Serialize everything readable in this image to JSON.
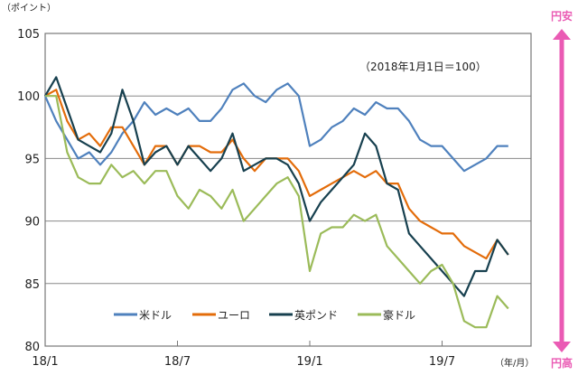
{
  "chart_data": {
    "type": "line",
    "ylabel": "（ポイント）",
    "xlabel": "（年/月）",
    "annotation": "（2018年1月1日＝100）",
    "ylim": [
      80,
      105
    ],
    "yticks": [
      "80",
      "85",
      "90",
      "95",
      "100",
      "105"
    ],
    "xlim": [
      "2018/01/01",
      "2019/10/31"
    ],
    "xticks": [
      {
        "label": "18/1",
        "date": "2018/01/01"
      },
      {
        "label": "18/7",
        "date": "2018/07/01"
      },
      {
        "label": "19/1",
        "date": "2019/01/01"
      },
      {
        "label": "19/7",
        "date": "2019/07/01"
      }
    ],
    "grid": "horizontal",
    "legend_position": "bottom-left",
    "side_arrow": {
      "top_label": "円安",
      "bottom_label": "円高",
      "color": "#ea5bb4"
    },
    "x": [
      "2018/01/01",
      "2018/01/16",
      "2018/02/01",
      "2018/02/16",
      "2018/03/01",
      "2018/03/16",
      "2018/04/01",
      "2018/04/16",
      "2018/05/01",
      "2018/05/16",
      "2018/06/01",
      "2018/06/16",
      "2018/07/01",
      "2018/07/16",
      "2018/08/01",
      "2018/08/16",
      "2018/09/01",
      "2018/09/16",
      "2018/10/01",
      "2018/10/16",
      "2018/11/01",
      "2018/11/16",
      "2018/12/01",
      "2018/12/16",
      "2019/01/01",
      "2019/01/16",
      "2019/02/01",
      "2019/02/16",
      "2019/03/01",
      "2019/03/16",
      "2019/04/01",
      "2019/04/16",
      "2019/05/01",
      "2019/05/16",
      "2019/06/01",
      "2019/06/16",
      "2019/07/01",
      "2019/07/16",
      "2019/08/01",
      "2019/08/16",
      "2019/09/01",
      "2019/09/16",
      "2019/10/01"
    ],
    "series": [
      {
        "name": "米ドル",
        "color": "#4f81bd",
        "values": [
          100,
          98,
          96.5,
          95,
          95.5,
          94.5,
          95.5,
          97,
          98,
          99.5,
          98.5,
          99,
          98.5,
          99,
          98,
          98,
          99,
          100.5,
          101,
          100,
          99.5,
          100.5,
          101,
          100,
          96,
          96.5,
          97.5,
          98,
          99,
          98.5,
          99.5,
          99,
          99,
          98,
          96.5,
          96,
          96,
          95,
          94,
          94.5,
          95,
          96,
          96
        ]
      },
      {
        "name": "ユーロ",
        "color": "#e36c0a",
        "values": [
          100,
          100.5,
          98,
          96.5,
          97,
          96,
          97.5,
          97.5,
          96,
          94.5,
          96,
          96,
          94.5,
          96,
          96,
          95.5,
          95.5,
          96.5,
          95,
          94,
          95,
          95,
          95,
          94,
          92,
          92.5,
          93,
          93.5,
          94,
          93.5,
          94,
          93,
          93,
          91,
          90,
          89.5,
          89,
          89,
          88,
          87.5,
          87,
          88.5,
          87.3
        ]
      },
      {
        "name": "英ポンド",
        "color": "#17404f",
        "values": [
          100,
          101.5,
          99,
          96.5,
          96,
          95.5,
          97,
          100.5,
          98,
          94.5,
          95.5,
          96,
          94.5,
          96,
          95,
          94,
          95,
          97,
          94,
          94.5,
          95,
          95,
          94.5,
          93,
          90,
          91.5,
          92.5,
          93.5,
          94.5,
          97,
          96,
          93,
          92.5,
          89,
          88,
          87,
          86,
          85,
          84,
          86,
          86,
          88.5,
          87.3
        ]
      },
      {
        "name": "豪ドル",
        "color": "#9bbb59",
        "values": [
          100,
          100,
          95.5,
          93.5,
          93,
          93,
          94.5,
          93.5,
          94,
          93,
          94,
          94,
          92,
          91,
          92.5,
          92,
          91,
          92.5,
          90,
          91,
          92,
          93,
          93.5,
          92,
          86,
          89,
          89.5,
          89.5,
          90.5,
          90,
          90.5,
          88,
          87,
          86,
          85,
          86,
          86.5,
          85,
          82,
          81.5,
          81.5,
          84,
          83
        ]
      }
    ]
  }
}
